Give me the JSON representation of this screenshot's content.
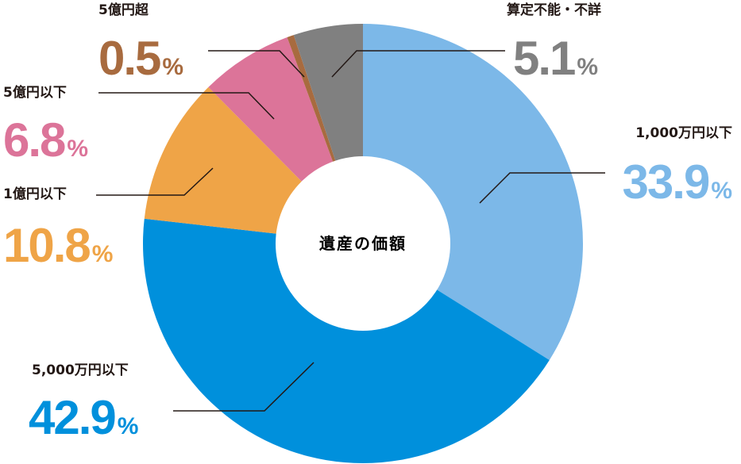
{
  "chart_data": {
    "type": "pie",
    "center_label": "遺産の価額",
    "unit": "%",
    "slices": [
      {
        "label": "1,000万円以下",
        "value": 33.9,
        "color": "#7cb8e8"
      },
      {
        "label": "5,000万円以下",
        "value": 42.9,
        "color": "#0090dc"
      },
      {
        "label": "1億円以下",
        "value": 10.8,
        "color": "#efa447"
      },
      {
        "label": "5億円以下",
        "value": 6.8,
        "color": "#dc7499"
      },
      {
        "label": "5億円超",
        "value": 0.5,
        "color": "#a86b3f"
      },
      {
        "label": "算定不能・不詳",
        "value": 5.1,
        "color": "#808080"
      }
    ]
  }
}
